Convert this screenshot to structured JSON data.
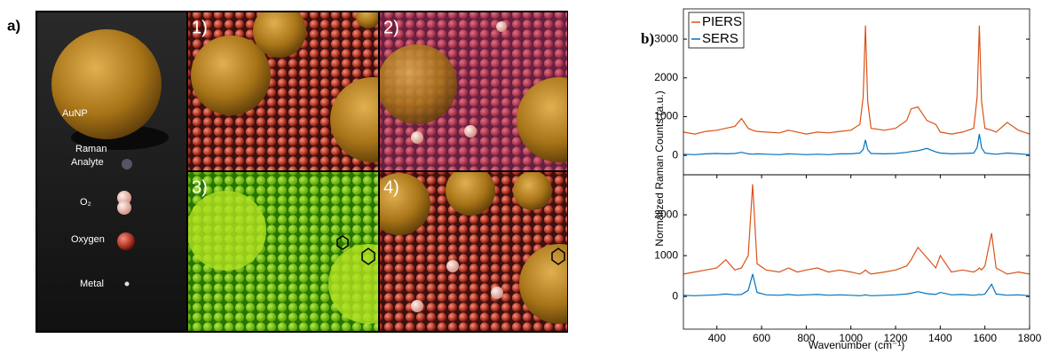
{
  "panel_a": {
    "label": "a)",
    "legend_items": [
      "AuNP",
      "Raman",
      "Analyte",
      "O₂",
      "Oxygen",
      "Metal"
    ],
    "quadrants": [
      "1)",
      "2)",
      "3)",
      "4)"
    ]
  },
  "panel_b": {
    "label": "b)",
    "y_label": "Normalized Raman Counts (a.u.)",
    "x_label": "Wavenumber (cm⁻¹)"
  },
  "chart_data": [
    {
      "type": "line",
      "legend": "upper-left",
      "xlim": [
        250,
        1800
      ],
      "ylim": [
        -500,
        3780
      ],
      "yticks": [
        0,
        1000,
        2000,
        3000
      ],
      "x": [
        250,
        300,
        350,
        400,
        440,
        480,
        510,
        540,
        560,
        580,
        620,
        680,
        720,
        760,
        800,
        850,
        900,
        950,
        1000,
        1040,
        1055,
        1065,
        1075,
        1090,
        1150,
        1200,
        1250,
        1270,
        1300,
        1340,
        1380,
        1400,
        1450,
        1500,
        1550,
        1565,
        1575,
        1585,
        1600,
        1630,
        1650,
        1700,
        1750,
        1800
      ],
      "series": [
        {
          "name": "PIERS",
          "color": "#d95319",
          "values": [
            600,
            550,
            620,
            650,
            700,
            750,
            950,
            700,
            650,
            620,
            600,
            580,
            650,
            600,
            550,
            600,
            580,
            620,
            650,
            800,
            1500,
            3350,
            1400,
            700,
            650,
            700,
            900,
            1200,
            1250,
            900,
            800,
            600,
            550,
            600,
            700,
            1500,
            3350,
            1400,
            700,
            650,
            600,
            850,
            650,
            550
          ]
        },
        {
          "name": "SERS",
          "color": "#0072bd",
          "values": [
            30,
            20,
            40,
            50,
            40,
            50,
            80,
            40,
            30,
            40,
            30,
            20,
            40,
            30,
            20,
            30,
            20,
            40,
            40,
            60,
            150,
            400,
            150,
            50,
            40,
            50,
            80,
            100,
            120,
            180,
            90,
            60,
            40,
            50,
            60,
            200,
            550,
            200,
            60,
            40,
            30,
            60,
            40,
            20
          ]
        }
      ]
    },
    {
      "type": "line",
      "xlim": [
        250,
        1800
      ],
      "ylim": [
        -800,
        2980
      ],
      "yticks": [
        0,
        1000,
        2000
      ],
      "xticks": [
        400,
        600,
        800,
        1000,
        1200,
        1400,
        1600,
        1800
      ],
      "x": [
        250,
        300,
        350,
        400,
        440,
        480,
        510,
        540,
        560,
        580,
        620,
        680,
        720,
        760,
        800,
        850,
        900,
        950,
        1000,
        1040,
        1055,
        1065,
        1075,
        1090,
        1150,
        1200,
        1250,
        1270,
        1300,
        1340,
        1380,
        1400,
        1450,
        1500,
        1550,
        1565,
        1575,
        1585,
        1600,
        1630,
        1650,
        1700,
        1750,
        1800
      ],
      "series": [
        {
          "color": "#d95319",
          "values": [
            550,
            600,
            650,
            700,
            900,
            650,
            700,
            1000,
            2750,
            800,
            650,
            600,
            700,
            600,
            650,
            700,
            600,
            650,
            600,
            550,
            600,
            650,
            600,
            550,
            600,
            650,
            750,
            900,
            1200,
            950,
            700,
            1000,
            600,
            650,
            600,
            650,
            700,
            650,
            750,
            1550,
            700,
            550,
            600,
            550
          ]
        },
        {
          "color": "#0072bd",
          "values": [
            30,
            20,
            30,
            40,
            60,
            40,
            50,
            150,
            550,
            100,
            40,
            30,
            50,
            30,
            40,
            50,
            30,
            40,
            30,
            20,
            30,
            40,
            30,
            20,
            30,
            40,
            60,
            80,
            120,
            70,
            50,
            100,
            40,
            50,
            30,
            40,
            50,
            40,
            60,
            300,
            60,
            30,
            40,
            20
          ]
        }
      ]
    }
  ]
}
